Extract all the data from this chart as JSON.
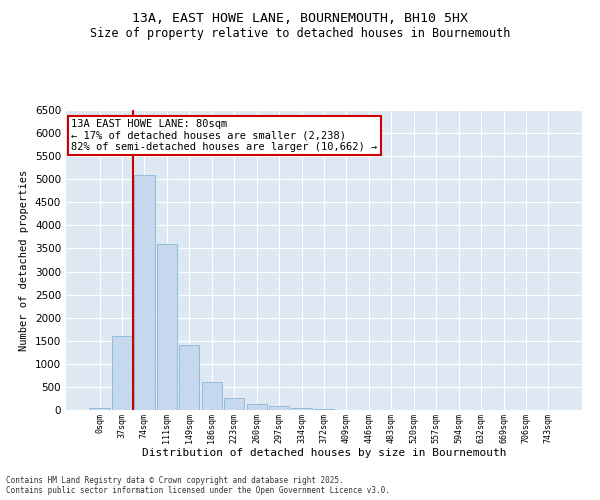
{
  "title1": "13A, EAST HOWE LANE, BOURNEMOUTH, BH10 5HX",
  "title2": "Size of property relative to detached houses in Bournemouth",
  "xlabel": "Distribution of detached houses by size in Bournemouth",
  "ylabel": "Number of detached properties",
  "footer1": "Contains HM Land Registry data © Crown copyright and database right 2025.",
  "footer2": "Contains public sector information licensed under the Open Government Licence v3.0.",
  "annotation_line1": "13A EAST HOWE LANE: 80sqm",
  "annotation_line2": "← 17% of detached houses are smaller (2,238)",
  "annotation_line3": "82% of semi-detached houses are larger (10,662) →",
  "bar_labels": [
    "0sqm",
    "37sqm",
    "74sqm",
    "111sqm",
    "149sqm",
    "186sqm",
    "223sqm",
    "260sqm",
    "297sqm",
    "334sqm",
    "372sqm",
    "409sqm",
    "446sqm",
    "483sqm",
    "520sqm",
    "557sqm",
    "594sqm",
    "632sqm",
    "669sqm",
    "706sqm",
    "743sqm"
  ],
  "bar_values": [
    50,
    1600,
    5100,
    3600,
    1400,
    600,
    250,
    130,
    80,
    40,
    20,
    10,
    5,
    2,
    1,
    0,
    0,
    0,
    0,
    0,
    0
  ],
  "bar_color": "#c5d8ee",
  "bar_edge_color": "#7aafd4",
  "vline_color": "#cc0000",
  "vline_bin_index": 2,
  "ylim": [
    0,
    6500
  ],
  "yticks": [
    0,
    500,
    1000,
    1500,
    2000,
    2500,
    3000,
    3500,
    4000,
    4500,
    5000,
    5500,
    6000,
    6500
  ],
  "bg_color": "#dde8f2",
  "annotation_box_edgecolor": "#cc0000",
  "annotation_box_facecolor": "white",
  "grid_color": "white",
  "title1_fontsize": 9.5,
  "title2_fontsize": 8.5
}
